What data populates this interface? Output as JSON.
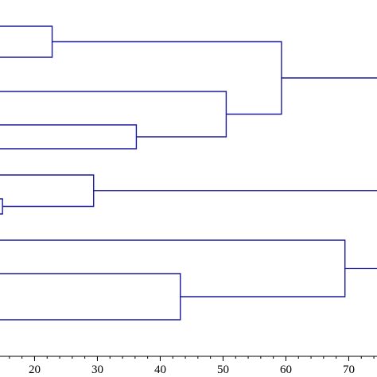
{
  "chart_data": {
    "type": "dendrogram",
    "orientation": "horizontal",
    "color": "#1a1a9c",
    "x_axis": {
      "visible_range": [
        14.5,
        74.5
      ],
      "ticks": [
        20,
        30,
        40,
        50,
        60,
        70
      ],
      "tick_labels": [
        "20",
        "30",
        "40",
        "50",
        "60",
        "70"
      ],
      "minor_tick_step": 2
    },
    "merges": [
      {
        "height": 22.8,
        "children": [
          "leaf-1",
          "leaf-2"
        ]
      },
      {
        "height": 36.2,
        "children": [
          "leaf-4",
          "leaf-5"
        ]
      },
      {
        "height": 50.5,
        "children": [
          "leaf-3",
          "merge-36.2"
        ]
      },
      {
        "height": 59.3,
        "children": [
          "merge-22.8",
          "merge-50.5"
        ]
      },
      {
        "height": 14.9,
        "children": [
          "leaf-7",
          "leaf-8"
        ]
      },
      {
        "height": 29.4,
        "children": [
          "leaf-6",
          "merge-14.9"
        ]
      },
      {
        "height": 43.2,
        "children": [
          "leaf-10",
          "leaf-11"
        ]
      },
      {
        "height": 69.4,
        "children": [
          "leaf-9",
          "merge-43.2"
        ]
      },
      {
        "height": "above 74.5",
        "children": [
          "merge-59.3",
          "merge-29.4 (line continues past right edge)"
        ]
      }
    ]
  }
}
